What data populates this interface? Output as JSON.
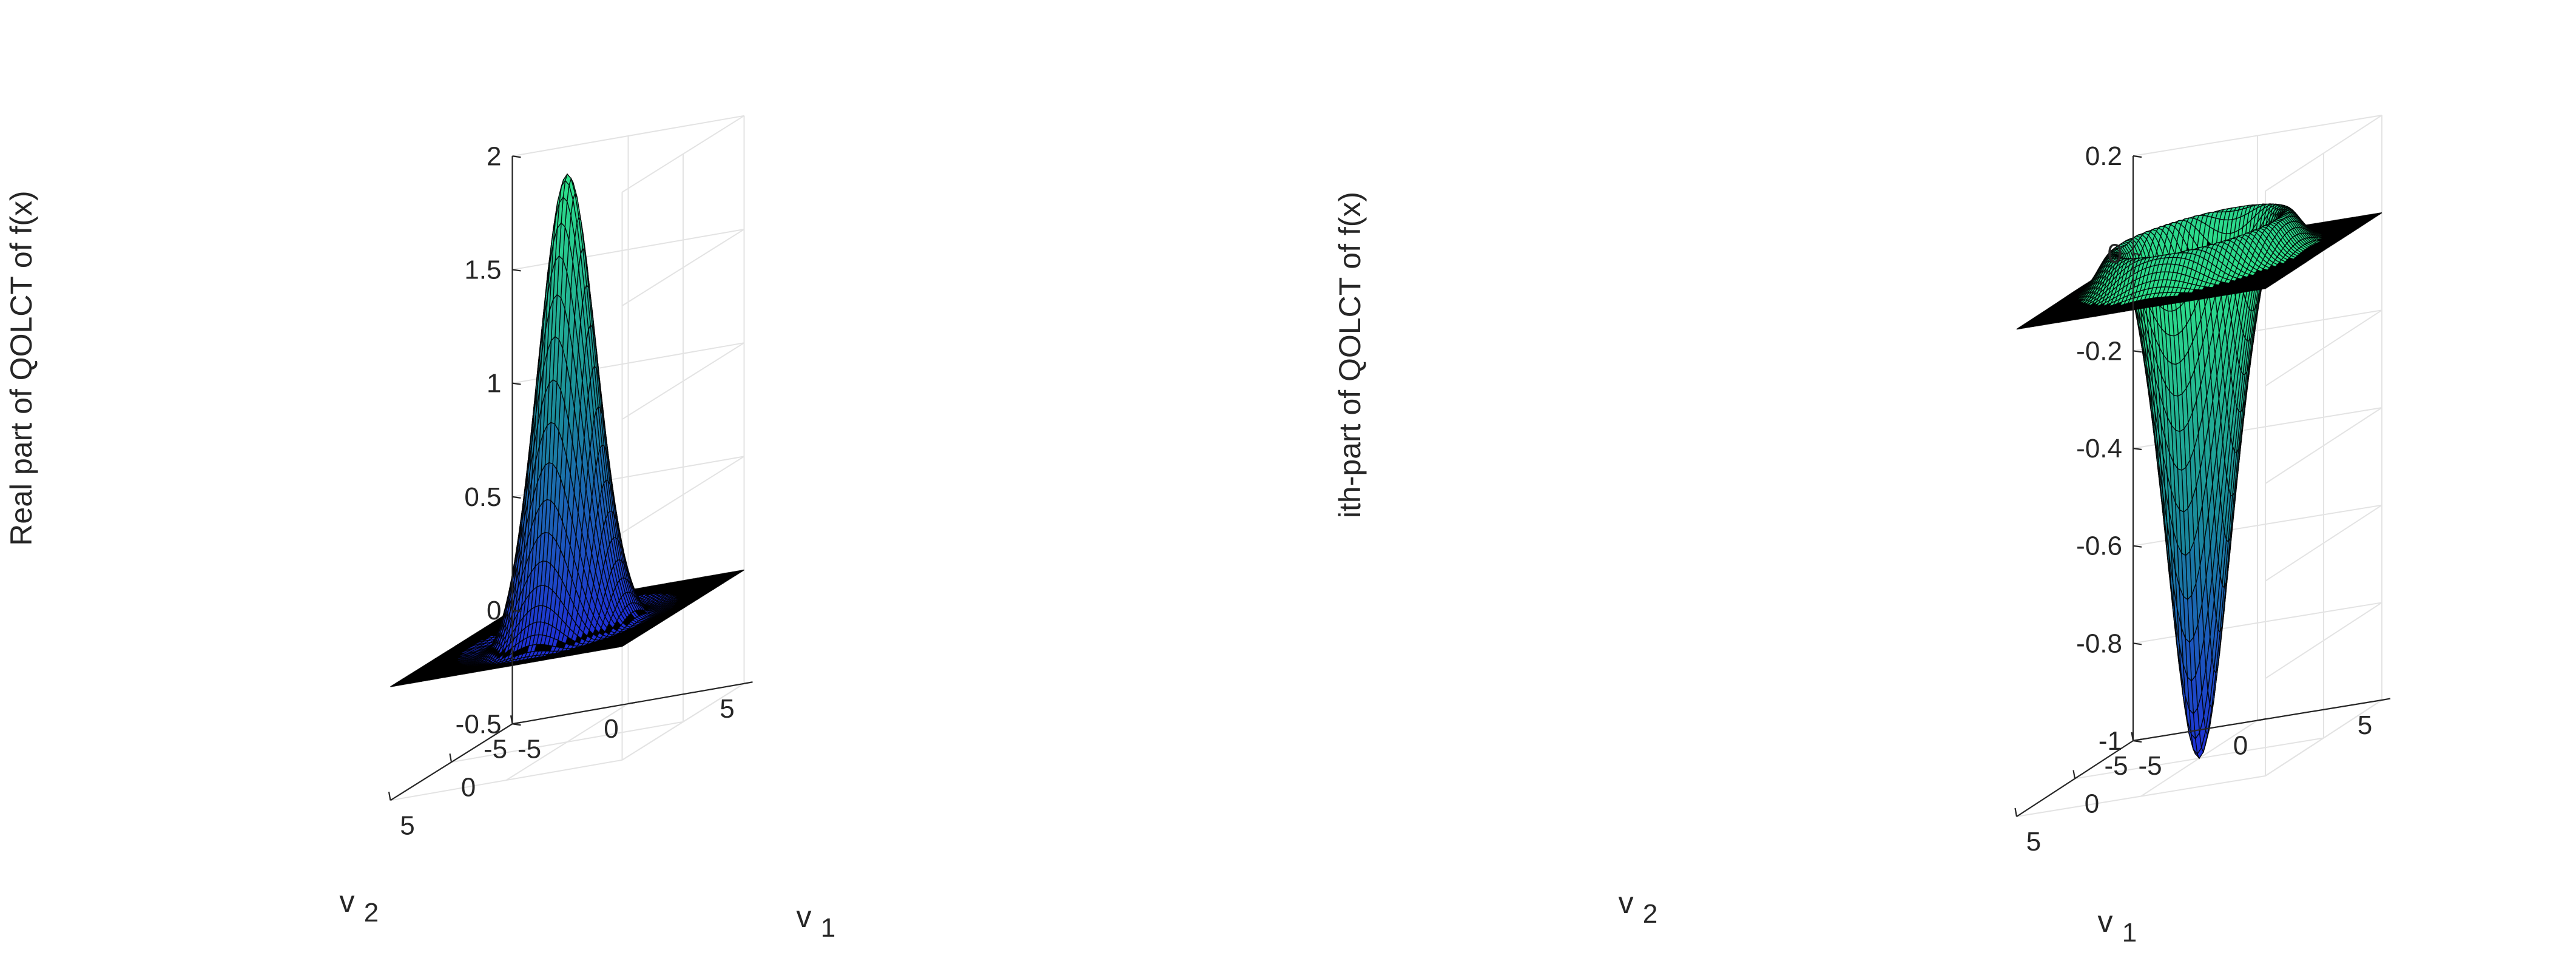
{
  "chart_data": [
    {
      "type": "surface",
      "zlabel": "Real part of QOLCT of f(x)",
      "xlabel": "v",
      "xlabel_sub": "1",
      "ylabel": "v",
      "ylabel_sub": "2",
      "xlim": [
        -5,
        5
      ],
      "ylim": [
        -5,
        5
      ],
      "zlim": [
        -0.5,
        2
      ],
      "xticks": [
        -5,
        0,
        5
      ],
      "yticks": [
        -5,
        0,
        5
      ],
      "zticks": [
        -0.5,
        0,
        0.5,
        1,
        1.5,
        2
      ],
      "xtick_labels": [
        "-5",
        "0",
        "5"
      ],
      "ytick_labels": [
        "-5",
        "0",
        "5"
      ],
      "ztick_labels": [
        "-0.5",
        "0",
        "0.5",
        "1",
        "1.5",
        "2"
      ],
      "surface": {
        "peak": 2.0,
        "peak_at": [
          0,
          0
        ],
        "ring_level": -0.05,
        "base": 0
      },
      "colormap": [
        "#1e2fd8",
        "#1a8a9b",
        "#2de38a"
      ],
      "grid": true
    },
    {
      "type": "surface",
      "zlabel": "ith-part of QOLCT of f(x)",
      "xlabel": "v",
      "xlabel_sub": "1",
      "ylabel": "v",
      "ylabel_sub": "2",
      "xlim": [
        -5,
        5
      ],
      "ylim": [
        -5,
        5
      ],
      "zlim": [
        -1,
        0.2
      ],
      "xticks": [
        -5,
        0,
        5
      ],
      "yticks": [
        -5,
        0,
        5
      ],
      "zticks": [
        -1,
        -0.8,
        -0.6,
        -0.4,
        -0.2,
        0,
        0.2
      ],
      "xtick_labels": [
        "-5",
        "0",
        "5"
      ],
      "ytick_labels": [
        "-5",
        "0",
        "5"
      ],
      "ztick_labels": [
        "-1",
        "-0.8",
        "-0.6",
        "-0.4",
        "-0.2",
        "0",
        "0.2"
      ],
      "surface": {
        "peak": -1.0,
        "peak_at": [
          0,
          0
        ],
        "ring_level": 0.1,
        "base": 0
      },
      "colormap": [
        "#1e2fd8",
        "#1a8a9b",
        "#2de38a"
      ],
      "grid": true
    }
  ]
}
